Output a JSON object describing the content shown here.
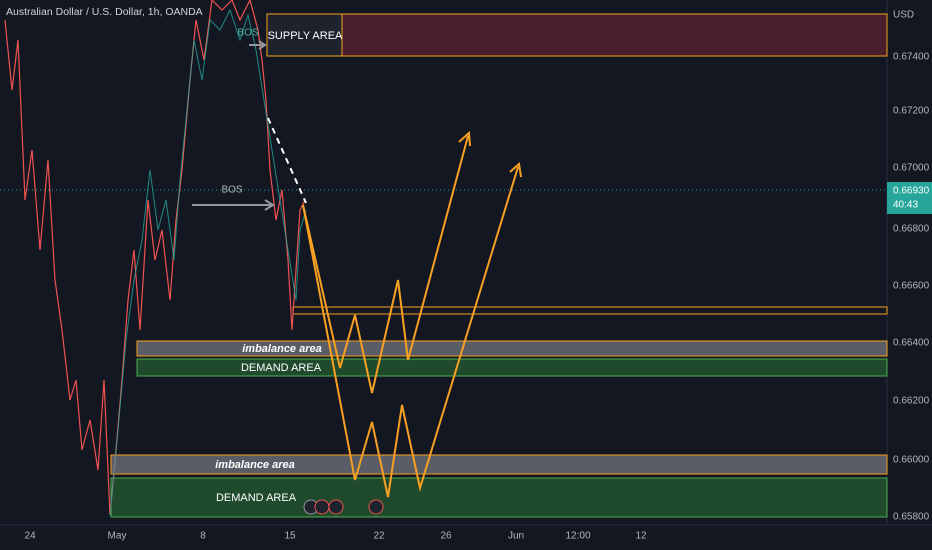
{
  "header": {
    "title": "Australian Dollar / U.S. Dollar, 1h, OANDA"
  },
  "price_axis": {
    "currency": "USD",
    "labels": [
      "0.67400",
      "0.67200",
      "0.67000",
      "0.66800",
      "0.66600",
      "0.66400",
      "0.66200",
      "0.66000",
      "0.65800"
    ]
  },
  "current_price": {
    "price": "0.66930",
    "countdown": "40:43"
  },
  "time_axis": {
    "labels": [
      "24",
      "May",
      "8",
      "15",
      "22",
      "26",
      "Jun",
      "12:00",
      "12"
    ]
  },
  "annotations": {
    "supply": "SUPPLY AREA",
    "bos": [
      "BOS",
      "BOS"
    ],
    "imbalance": [
      "imbalance area",
      "imbalance area"
    ],
    "demand": [
      "DEMAND AREA",
      "DEMAND AREA"
    ]
  }
}
